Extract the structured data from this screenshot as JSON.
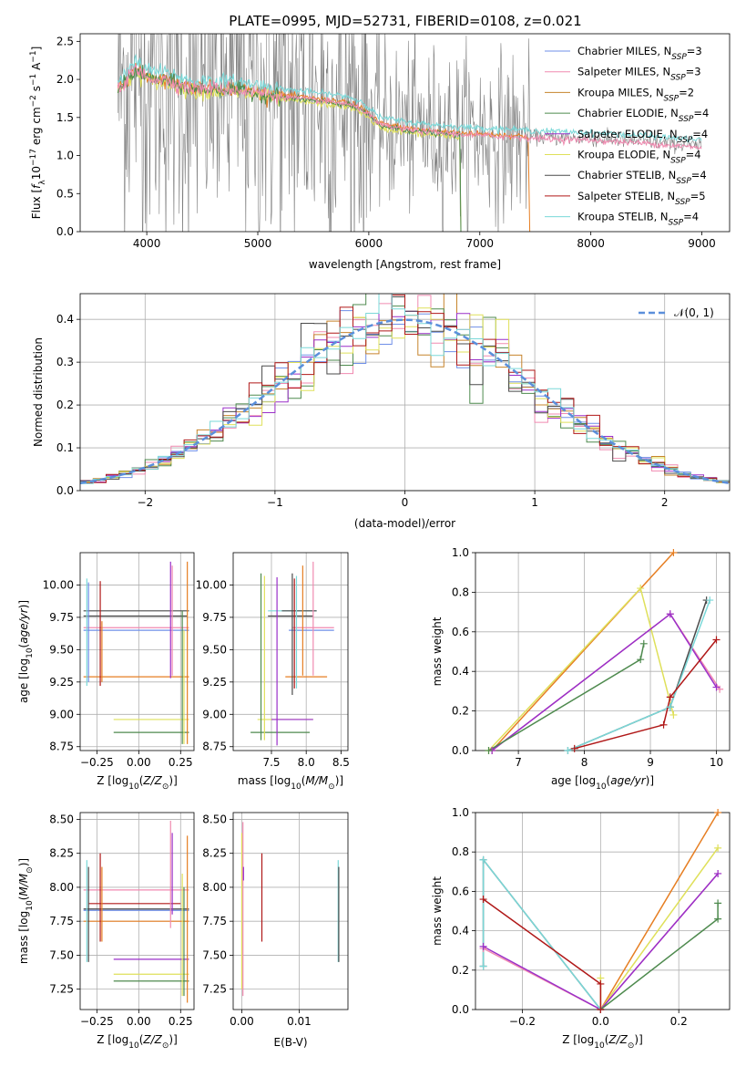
{
  "title": "PLATE=0995, MJD=52731, FIBERID=0108, z=0.021",
  "colors": {
    "Chabrier MILES": "#6f8fe8",
    "Salpeter MILES": "#f08ab0",
    "Kroupa MILES": "#c6842c",
    "Chabrier ELODIE": "#4e8a4e",
    "Salpeter ELODIE": "#9a2fc8",
    "Kroupa ELODIE": "#dfe05a",
    "Chabrier STELIB": "#4a4a4a",
    "Salpeter STELIB": "#b01818",
    "Kroupa STELIB": "#7ad8d8",
    "data": "#7f7f7f",
    "model_orange": "#e67e22",
    "gaussian": "#5b8fdb",
    "grid": "#b0b0b0"
  },
  "chart_data": [
    {
      "type": "line",
      "title": "PLATE=0995, MJD=52731, FIBERID=0108, z=0.021",
      "xlabel": "wavelength [Angstrom, rest frame]",
      "ylabel": "Flux [f_λ 10^-17 erg cm^-2 s^-1 A^-1]",
      "xlim": [
        3400,
        9250
      ],
      "ylim": [
        0,
        2.6
      ],
      "xticks": [
        "4000",
        "5000",
        "6000",
        "7000",
        "8000",
        "9000"
      ],
      "yticks": [
        "0.0",
        "0.5",
        "1.0",
        "1.5",
        "2.0",
        "2.5"
      ],
      "legend": [
        "Chabrier MILES, N_SSP=3",
        "Salpeter MILES, N_SSP=3",
        "Kroupa MILES, N_SSP=2",
        "Chabrier ELODIE, N_SSP=4",
        "Salpeter ELODIE, N_SSP=4",
        "Kroupa ELODIE, N_SSP=4",
        "Chabrier STELIB, N_SSP=4",
        "Salpeter STELIB, N_SSP=5",
        "Kroupa STELIB, N_SSP=4"
      ],
      "legend_placement": "upper right",
      "continuum": {
        "x": [
          3750,
          3900,
          4000,
          4200,
          4400,
          4700,
          5000,
          5200,
          5500,
          5800,
          5950,
          6100,
          6400,
          6800,
          7200,
          7600,
          8000,
          8500,
          9000
        ],
        "y": [
          1.9,
          2.15,
          2.05,
          2.0,
          1.9,
          1.9,
          1.85,
          1.8,
          1.75,
          1.7,
          1.62,
          1.42,
          1.35,
          1.3,
          1.27,
          1.24,
          1.22,
          1.18,
          1.12
        ]
      }
    },
    {
      "type": "line",
      "xlabel": "(data-model)/error",
      "ylabel": "Normed distribution",
      "xlim": [
        -2.5,
        2.5
      ],
      "ylim": [
        0,
        0.46
      ],
      "xticks": [
        "−2",
        "−1",
        "0",
        "1",
        "2"
      ],
      "yticks": [
        "0.0",
        "0.1",
        "0.2",
        "0.3",
        "0.4"
      ],
      "legend": [
        "𝒩(0, 1)"
      ],
      "legend_placement": "upper right",
      "series": [
        {
          "name": "𝒩(0, 1)",
          "mean": 0,
          "std": 1
        }
      ],
      "bin_width": 0.1
    },
    {
      "type": "scatter",
      "xlabel": "Z [log10(Z/Z⊙)]",
      "ylabel": "age [log10(age/yr)]",
      "xlim": [
        -0.35,
        0.33
      ],
      "ylim": [
        8.72,
        10.25
      ],
      "xticks": [
        "−0.25",
        "0.00",
        "0.25"
      ],
      "yticks": [
        "8.75",
        "9.00",
        "9.25",
        "9.50",
        "9.75",
        "10.00"
      ],
      "hbars": [
        {
          "y": 9.8,
          "x": [
            -0.33,
            0.3
          ],
          "c": "Chabrier STELIB"
        },
        {
          "y": 9.76,
          "x": [
            -0.33,
            0.29
          ],
          "c": "Chabrier STELIB"
        },
        {
          "y": 9.67,
          "x": [
            -0.33,
            0.3
          ],
          "c": "Salpeter MILES"
        },
        {
          "y": 9.65,
          "x": [
            -0.33,
            0.3
          ],
          "c": "Chabrier MILES"
        },
        {
          "y": 9.29,
          "x": [
            -0.33,
            0.3
          ],
          "c": "model_orange"
        },
        {
          "y": 8.96,
          "x": [
            -0.15,
            0.3
          ],
          "c": "Kroupa ELODIE"
        },
        {
          "y": 8.86,
          "x": [
            -0.15,
            0.3
          ],
          "c": "Chabrier ELODIE"
        }
      ],
      "vbars": [
        {
          "x": -0.31,
          "y": [
            9.22,
            10.05
          ],
          "c": "Kroupa STELIB"
        },
        {
          "x": -0.3,
          "y": [
            9.25,
            10.02
          ],
          "c": "Chabrier MILES"
        },
        {
          "x": -0.23,
          "y": [
            9.22,
            10.03
          ],
          "c": "Salpeter STELIB"
        },
        {
          "x": -0.22,
          "y": [
            9.25,
            9.72
          ],
          "c": "model_orange"
        },
        {
          "x": 0.19,
          "y": [
            9.28,
            10.18
          ],
          "c": "Salpeter ELODIE"
        },
        {
          "x": 0.2,
          "y": [
            9.3,
            10.15
          ],
          "c": "Salpeter MILES"
        },
        {
          "x": 0.26,
          "y": [
            8.77,
            9.8
          ],
          "c": "Chabrier ELODIE"
        },
        {
          "x": 0.27,
          "y": [
            8.77,
            9.65
          ],
          "c": "Kroupa ELODIE"
        },
        {
          "x": 0.29,
          "y": [
            8.77,
            10.18
          ],
          "c": "model_orange"
        }
      ]
    },
    {
      "type": "scatter",
      "xlabel": "mass [log10(M/M⊙)]",
      "ylabel": "",
      "xlim": [
        6.95,
        8.6
      ],
      "ylim": [
        8.72,
        10.25
      ],
      "xticks": [
        "7.5",
        "8.0",
        "8.5"
      ],
      "yticks": [
        "8.75",
        "9.00",
        "9.25",
        "9.50",
        "9.75",
        "10.00"
      ],
      "hbars": [
        {
          "y": 9.8,
          "x": [
            7.45,
            8.15
          ],
          "c": "Kroupa STELIB"
        },
        {
          "y": 9.8,
          "x": [
            7.65,
            8.15
          ],
          "c": "Chabrier STELIB"
        },
        {
          "y": 9.76,
          "x": [
            7.45,
            8.1
          ],
          "c": "Chabrier STELIB"
        },
        {
          "y": 9.67,
          "x": [
            7.8,
            8.4
          ],
          "c": "Salpeter MILES"
        },
        {
          "y": 9.65,
          "x": [
            7.75,
            8.4
          ],
          "c": "Chabrier MILES"
        },
        {
          "y": 9.29,
          "x": [
            7.7,
            8.3
          ],
          "c": "model_orange"
        },
        {
          "y": 8.96,
          "x": [
            7.3,
            8.1
          ],
          "c": "Kroupa ELODIE"
        },
        {
          "y": 8.96,
          "x": [
            7.5,
            8.1
          ],
          "c": "Salpeter ELODIE"
        },
        {
          "y": 8.86,
          "x": [
            7.2,
            8.05
          ],
          "c": "Chabrier ELODIE"
        }
      ],
      "vbars": [
        {
          "x": 7.35,
          "y": [
            8.8,
            10.09
          ],
          "c": "Chabrier ELODIE"
        },
        {
          "x": 7.4,
          "y": [
            8.8,
            10.07
          ],
          "c": "Kroupa ELODIE"
        },
        {
          "x": 7.58,
          "y": [
            8.76,
            10.06
          ],
          "c": "Salpeter ELODIE"
        },
        {
          "x": 7.8,
          "y": [
            9.15,
            10.09
          ],
          "c": "Chabrier STELIB"
        },
        {
          "x": 7.83,
          "y": [
            9.2,
            10.05
          ],
          "c": "Salpeter STELIB"
        },
        {
          "x": 7.86,
          "y": [
            9.2,
            10.07
          ],
          "c": "Kroupa STELIB"
        },
        {
          "x": 8.1,
          "y": [
            9.3,
            10.18
          ],
          "c": "Salpeter MILES"
        },
        {
          "x": 7.95,
          "y": [
            9.3,
            10.15
          ],
          "c": "model_orange"
        }
      ]
    },
    {
      "type": "line",
      "xlabel": "age [log10(age/yr)]",
      "ylabel": "mass weight",
      "xlim": [
        6.35,
        10.2
      ],
      "ylim": [
        0,
        1.0
      ],
      "xticks": [
        "7",
        "8",
        "9",
        "10"
      ],
      "yticks": [
        "0.0",
        "0.2",
        "0.4",
        "0.6",
        "0.8",
        "1.0"
      ],
      "series": [
        {
          "name": "Kroupa MILES",
          "color": "model_orange",
          "x": [
            6.6,
            9.35
          ],
          "y": [
            0.0,
            1.0
          ]
        },
        {
          "name": "Kroupa ELODIE",
          "color": "Kroupa ELODIE",
          "x": [
            6.55,
            8.85,
            9.35
          ],
          "y": [
            0.0,
            0.82,
            0.18
          ]
        },
        {
          "name": "Salpeter MILES",
          "color": "Salpeter MILES",
          "x": [
            6.6,
            9.3,
            10.05
          ],
          "y": [
            0.0,
            0.69,
            0.31
          ]
        },
        {
          "name": "Salpeter ELODIE",
          "color": "Salpeter ELODIE",
          "x": [
            6.6,
            9.3,
            10.0
          ],
          "y": [
            0.0,
            0.69,
            0.32
          ]
        },
        {
          "name": "Chabrier ELODIE",
          "color": "Chabrier ELODIE",
          "x": [
            6.55,
            8.85,
            8.9
          ],
          "y": [
            0.0,
            0.46,
            0.54
          ]
        },
        {
          "name": "Chabrier STELIB",
          "color": "Chabrier STELIB",
          "x": [
            7.75,
            9.3,
            9.85
          ],
          "y": [
            0.0,
            0.22,
            0.76
          ]
        },
        {
          "name": "Kroupa STELIB",
          "color": "Kroupa STELIB",
          "x": [
            7.75,
            9.3,
            9.9
          ],
          "y": [
            0.0,
            0.22,
            0.76
          ]
        },
        {
          "name": "Salpeter STELIB",
          "color": "Salpeter STELIB",
          "x": [
            7.85,
            9.2,
            9.3,
            10.0
          ],
          "y": [
            0.01,
            0.13,
            0.27,
            0.56
          ]
        }
      ]
    },
    {
      "type": "scatter",
      "xlabel": "Z [log10(Z/Z⊙)]",
      "ylabel": "mass [log10(M/M⊙)]",
      "xlim": [
        -0.35,
        0.33
      ],
      "ylim": [
        7.1,
        8.55
      ],
      "xticks": [
        "−0.25",
        "0.00",
        "0.25"
      ],
      "yticks": [
        "7.25",
        "7.50",
        "7.75",
        "8.00",
        "8.25",
        "8.50"
      ],
      "hbars": [
        {
          "y": 7.98,
          "x": [
            -0.33,
            0.3
          ],
          "c": "Salpeter MILES"
        },
        {
          "y": 7.88,
          "x": [
            -0.3,
            0.25
          ],
          "c": "Salpeter STELIB"
        },
        {
          "y": 7.84,
          "x": [
            -0.33,
            0.3
          ],
          "c": "Chabrier STELIB"
        },
        {
          "y": 7.83,
          "x": [
            -0.33,
            0.3
          ],
          "c": "Chabrier MILES"
        },
        {
          "y": 7.75,
          "x": [
            -0.33,
            0.3
          ],
          "c": "model_orange"
        },
        {
          "y": 7.47,
          "x": [
            -0.15,
            0.3
          ],
          "c": "Salpeter ELODIE"
        },
        {
          "y": 7.36,
          "x": [
            -0.15,
            0.3
          ],
          "c": "Kroupa ELODIE"
        },
        {
          "y": 7.31,
          "x": [
            -0.15,
            0.3
          ],
          "c": "Chabrier ELODIE"
        }
      ],
      "vbars": [
        {
          "x": -0.31,
          "y": [
            7.45,
            8.2
          ],
          "c": "Kroupa STELIB"
        },
        {
          "x": -0.3,
          "y": [
            7.45,
            8.15
          ],
          "c": "Chabrier STELIB"
        },
        {
          "x": -0.23,
          "y": [
            7.6,
            8.25
          ],
          "c": "Salpeter STELIB"
        },
        {
          "x": -0.22,
          "y": [
            7.6,
            8.15
          ],
          "c": "model_orange"
        },
        {
          "x": 0.19,
          "y": [
            7.7,
            8.49
          ],
          "c": "Salpeter MILES"
        },
        {
          "x": 0.2,
          "y": [
            7.8,
            8.4
          ],
          "c": "Salpeter ELODIE"
        },
        {
          "x": 0.26,
          "y": [
            7.2,
            8.1
          ],
          "c": "Kroupa ELODIE"
        },
        {
          "x": 0.27,
          "y": [
            7.2,
            8.0
          ],
          "c": "Chabrier ELODIE"
        },
        {
          "x": 0.29,
          "y": [
            7.15,
            8.38
          ],
          "c": "model_orange"
        }
      ]
    },
    {
      "type": "scatter",
      "xlabel": "E(B-V)",
      "ylabel": "",
      "xlim": [
        -0.0015,
        0.0185
      ],
      "ylim": [
        7.1,
        8.55
      ],
      "xticks": [
        "0.00",
        "0.01"
      ],
      "yticks": [
        "7.25",
        "7.50",
        "7.75",
        "8.00",
        "8.25",
        "8.50"
      ],
      "vbars": [
        {
          "x": 0.0,
          "y": [
            7.25,
            8.4
          ],
          "c": "Kroupa ELODIE"
        },
        {
          "x": 0.0002,
          "y": [
            7.2,
            8.48
          ],
          "c": "Salpeter MILES"
        },
        {
          "x": 0.0003,
          "y": [
            8.05,
            8.15
          ],
          "c": "Salpeter ELODIE"
        },
        {
          "x": 0.0035,
          "y": [
            7.6,
            8.25
          ],
          "c": "Salpeter STELIB"
        },
        {
          "x": 0.0168,
          "y": [
            7.45,
            8.2
          ],
          "c": "Kroupa STELIB"
        },
        {
          "x": 0.0169,
          "y": [
            7.45,
            8.15
          ],
          "c": "Chabrier STELIB"
        }
      ]
    },
    {
      "type": "line",
      "xlabel": "Z [log10(Z/Z⊙)]",
      "ylabel": "mass weight",
      "xlim": [
        -0.32,
        0.33
      ],
      "ylim": [
        0,
        1.0
      ],
      "xticks": [
        "−0.2",
        "0.0",
        "0.2"
      ],
      "yticks": [
        "0.0",
        "0.2",
        "0.4",
        "0.6",
        "0.8",
        "1.0"
      ],
      "series": [
        {
          "name": "Kroupa MILES",
          "color": "model_orange",
          "x": [
            0.0,
            0.3
          ],
          "y": [
            0.0,
            1.0
          ]
        },
        {
          "name": "Kroupa ELODIE",
          "color": "Kroupa ELODIE",
          "x": [
            0.0,
            0.0,
            0.3
          ],
          "y": [
            0.16,
            0.0,
            0.82
          ]
        },
        {
          "name": "Salpeter MILES",
          "color": "Salpeter MILES",
          "x": [
            -0.3,
            0.0,
            0.3
          ],
          "y": [
            0.31,
            0.0,
            0.69
          ]
        },
        {
          "name": "Salpeter ELODIE",
          "color": "Salpeter ELODIE",
          "x": [
            -0.3,
            0.0,
            0.3
          ],
          "y": [
            0.32,
            0.0,
            0.69
          ]
        },
        {
          "name": "Chabrier ELODIE",
          "color": "Chabrier ELODIE",
          "x": [
            0.0,
            0.3,
            0.3
          ],
          "y": [
            0.0,
            0.46,
            0.54
          ]
        },
        {
          "name": "Chabrier STELIB",
          "color": "Chabrier STELIB",
          "x": [
            -0.3,
            -0.3,
            0.0
          ],
          "y": [
            0.22,
            0.76,
            0.0
          ]
        },
        {
          "name": "Kroupa STELIB",
          "color": "Kroupa STELIB",
          "x": [
            -0.3,
            -0.3,
            0.0
          ],
          "y": [
            0.22,
            0.76,
            0.0
          ]
        },
        {
          "name": "Salpeter STELIB",
          "color": "Salpeter STELIB",
          "x": [
            -0.3,
            0.0,
            0.0
          ],
          "y": [
            0.56,
            0.13,
            0.0
          ]
        }
      ]
    }
  ]
}
